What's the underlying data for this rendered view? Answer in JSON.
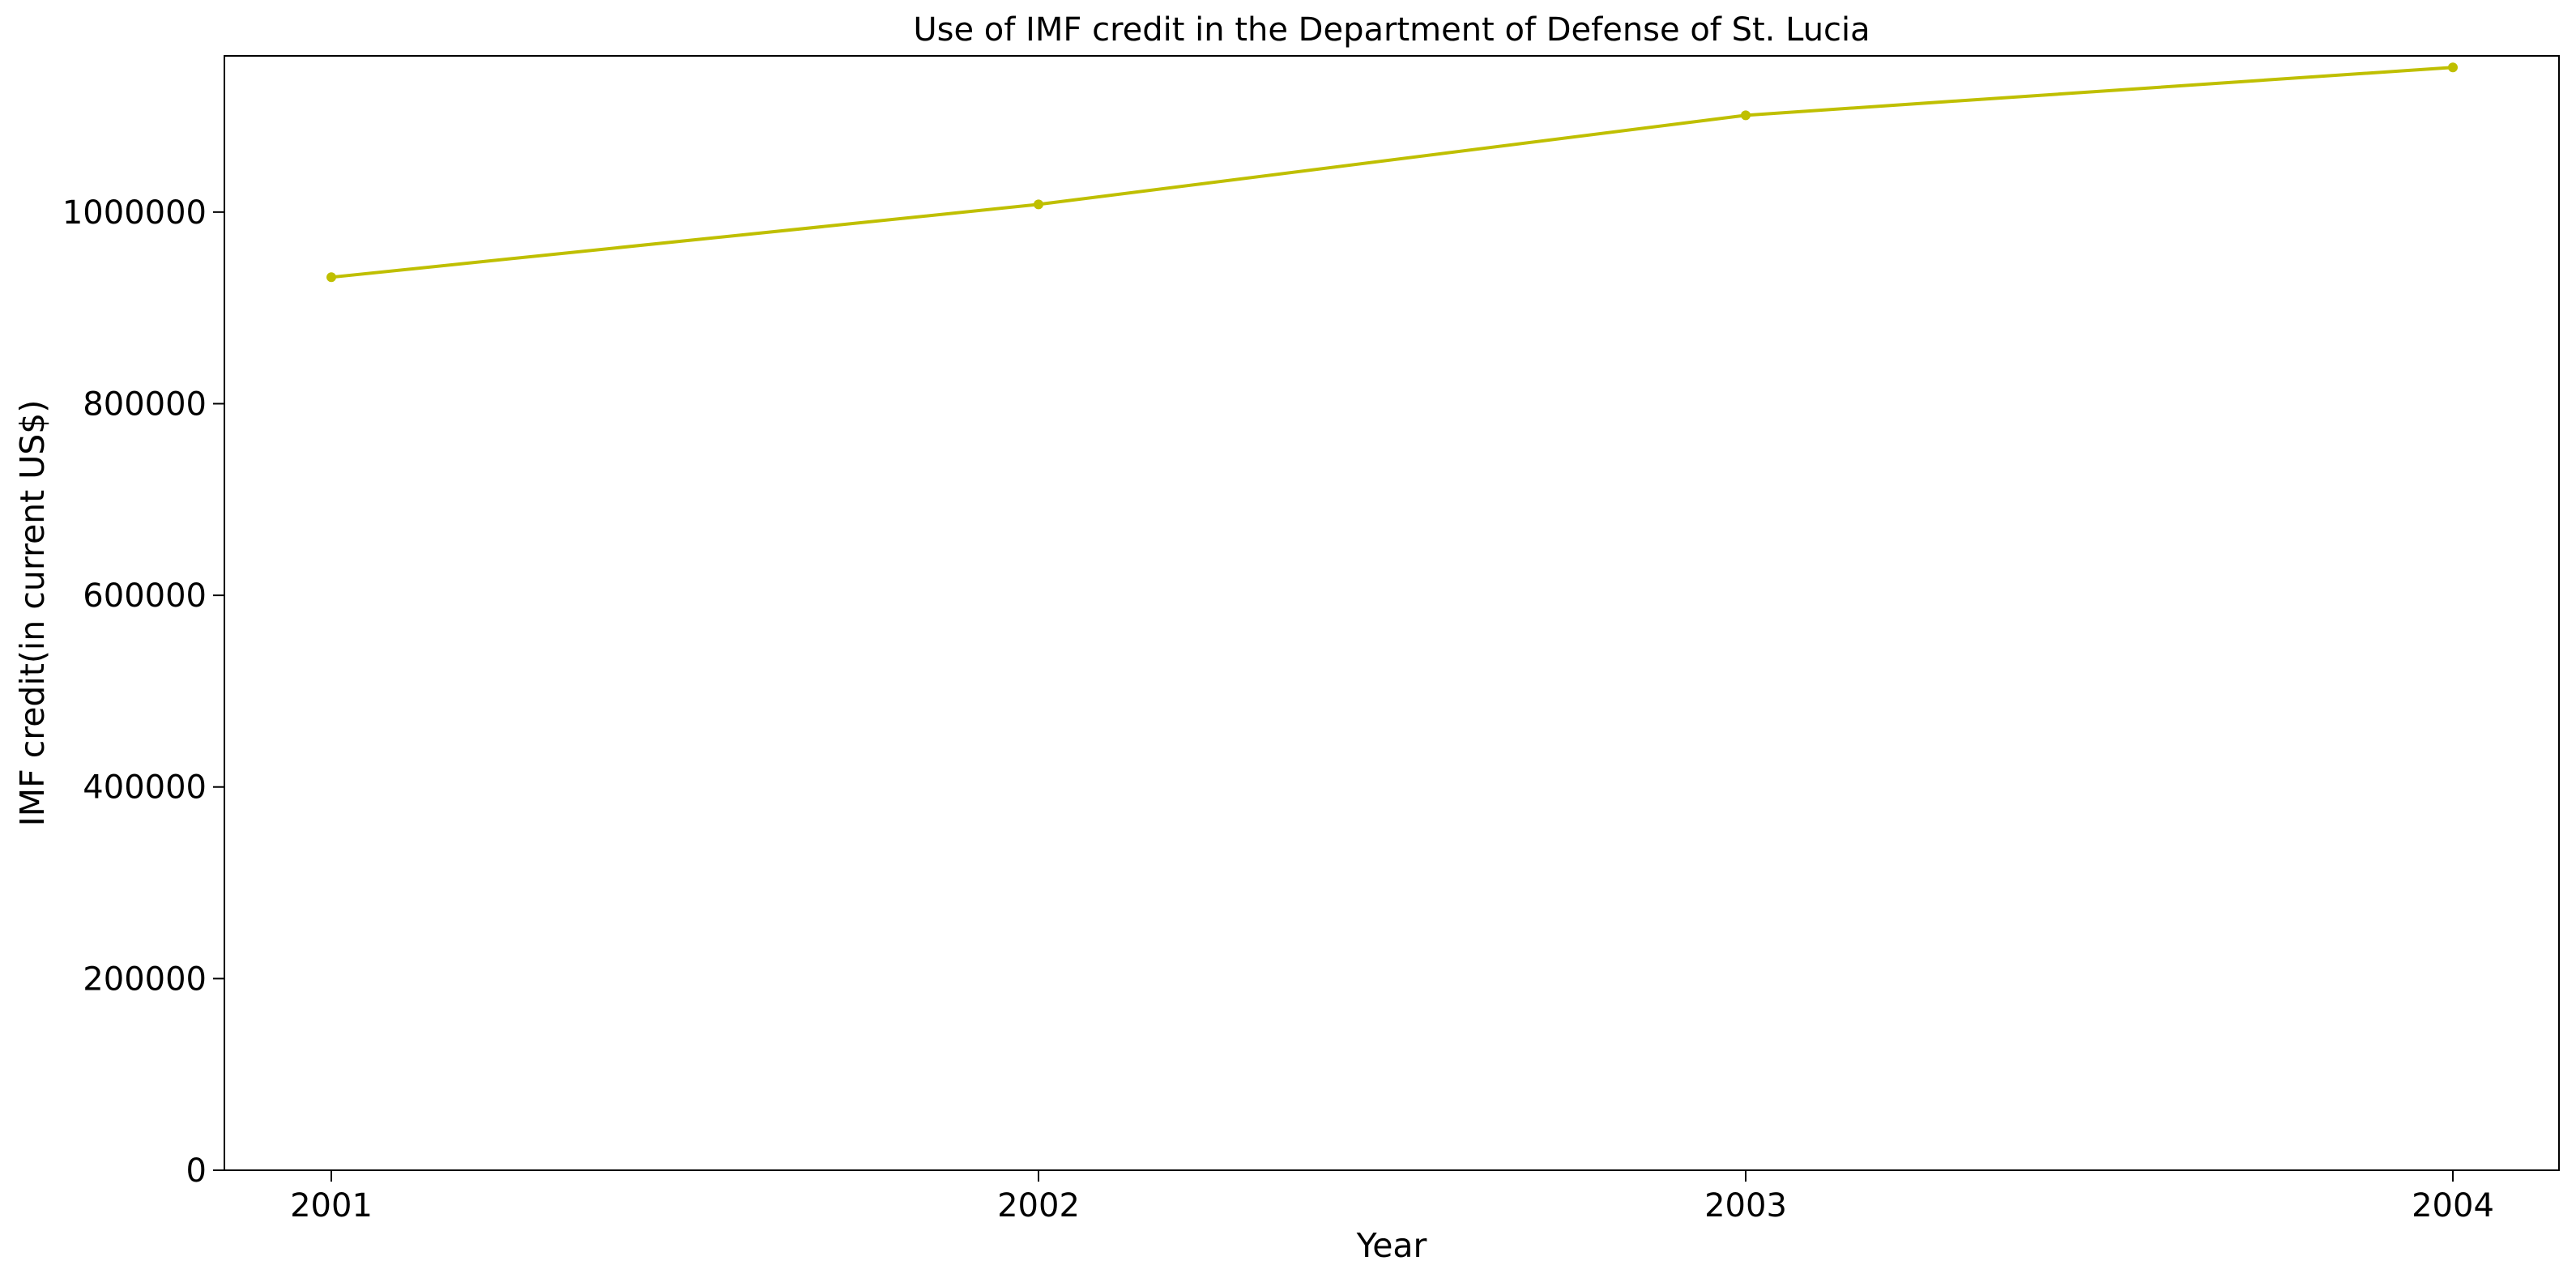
{
  "chart_data": {
    "type": "line",
    "title": "Use of IMF credit in the Department of Defense of St. Lucia",
    "xlabel": "Year",
    "ylabel": "IMF credit(in current US$)",
    "x": [
      "2001",
      "2002",
      "2003",
      "2004"
    ],
    "series": [
      {
        "values": [
          932000,
          1008000,
          1101000,
          1151000
        ],
        "color": "#bfbf00"
      }
    ],
    "yticks": [
      "0",
      "200000",
      "400000",
      "600000",
      "800000",
      "1000000"
    ],
    "ylim": [
      0,
      1163000
    ],
    "grid": false,
    "legend": "none"
  }
}
